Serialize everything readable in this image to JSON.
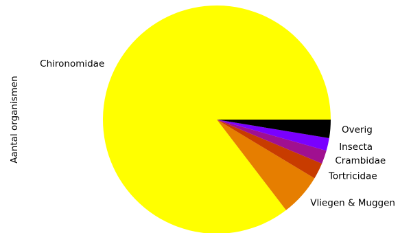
{
  "chart_data": {
    "type": "pie",
    "ylabel": "Aantal organismen",
    "start_angle_deg": 0,
    "direction": "counterclockwise",
    "slices": [
      {
        "label": "Chironomidae",
        "value": 85.4,
        "color": "#ffff00"
      },
      {
        "label": "Vliegen & Muggen",
        "value": 6.0,
        "color": "#e67e00"
      },
      {
        "label": "Tortricidae",
        "value": 2.3,
        "color": "#c83c00"
      },
      {
        "label": "Crambidae",
        "value": 1.9,
        "color": "#a01090"
      },
      {
        "label": "Insecta",
        "value": 1.8,
        "color": "#7a00ff"
      },
      {
        "label": "Overig",
        "value": 2.6,
        "color": "#000000"
      }
    ]
  }
}
